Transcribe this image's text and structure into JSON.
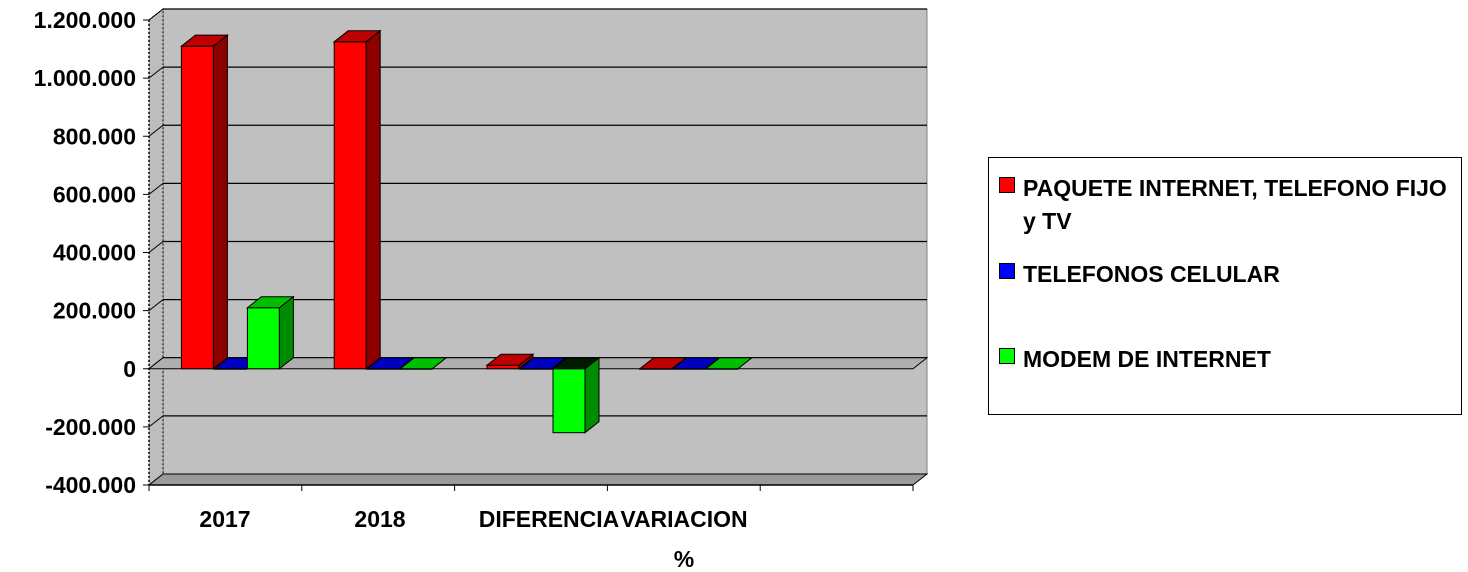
{
  "chart_data": {
    "type": "bar",
    "style": "3d-clustered-column",
    "categories": [
      "2017",
      "2018",
      "DIFERENCIA",
      "VARIACION %"
    ],
    "series": [
      {
        "name": "PAQUETE INTERNET, TELEFONO FIJO y TV",
        "color": "#FF0000",
        "values": [
          1110000,
          1125000,
          12000,
          0
        ]
      },
      {
        "name": "TELEFONOS CELULAR",
        "color": "#0000FF",
        "values": [
          0,
          0,
          0,
          0
        ]
      },
      {
        "name": "MODEM DE INTERNET",
        "color": "#00FF00",
        "values": [
          210000,
          0,
          -220000,
          0
        ]
      }
    ],
    "ylim": [
      -400000,
      1200000
    ],
    "yticks": [
      -400000,
      -200000,
      0,
      200000,
      400000,
      600000,
      800000,
      1000000,
      1200000
    ],
    "ytick_labels": [
      "-400.000",
      "-200.000",
      "0",
      "200.000",
      "400.000",
      "600.000",
      "800.000",
      "1.000.000",
      "1.200.000"
    ],
    "xtick_labels": [
      "2017",
      "2018",
      "DIFERENCIA",
      "VARIACION %"
    ],
    "grid": true,
    "plot_background": "#C0C0C0",
    "legend": "right"
  }
}
